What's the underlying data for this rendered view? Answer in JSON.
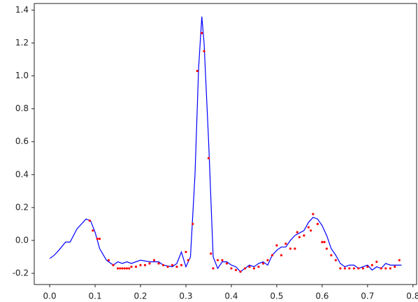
{
  "chart_data": {
    "type": "combo",
    "xlim": [
      -0.034,
      0.808
    ],
    "ylim": [
      -0.268,
      1.44
    ],
    "xticks": [
      {
        "value": 0,
        "label": "0.0"
      },
      0.1,
      0.2,
      0.3,
      0.4,
      0.5,
      0.6,
      0.7,
      0.8
    ],
    "yticks": [
      -0.2,
      {
        "value": 0,
        "label": "0.0"
      },
      0.2,
      0.4,
      0.6,
      0.8,
      {
        "value": 1,
        "label": "1.0"
      },
      1.2,
      1.4
    ],
    "grid": false,
    "series": [
      {
        "type": "line",
        "color": "#0000ff",
        "x": [
          0.0,
          0.01,
          0.02,
          0.035,
          0.045,
          0.06,
          0.08,
          0.09,
          0.1,
          0.11,
          0.125,
          0.14,
          0.15,
          0.16,
          0.17,
          0.18,
          0.2,
          0.22,
          0.24,
          0.25,
          0.27,
          0.28,
          0.29,
          0.3,
          0.31,
          0.32,
          0.328,
          0.335,
          0.34,
          0.35,
          0.36,
          0.37,
          0.38,
          0.39,
          0.4,
          0.41,
          0.42,
          0.43,
          0.44,
          0.45,
          0.46,
          0.47,
          0.48,
          0.49,
          0.5,
          0.51,
          0.52,
          0.53,
          0.54,
          0.56,
          0.57,
          0.58,
          0.59,
          0.6,
          0.61,
          0.62,
          0.63,
          0.64,
          0.65,
          0.66,
          0.67,
          0.68,
          0.69,
          0.7,
          0.71,
          0.72,
          0.73,
          0.74,
          0.75,
          0.76,
          0.775
        ],
        "values": [
          -0.11,
          -0.09,
          -0.06,
          -0.01,
          -0.01,
          0.07,
          0.13,
          0.12,
          0.05,
          -0.05,
          -0.12,
          -0.15,
          -0.13,
          -0.14,
          -0.13,
          -0.14,
          -0.12,
          -0.13,
          -0.13,
          -0.15,
          -0.16,
          -0.14,
          -0.07,
          -0.16,
          -0.1,
          0.4,
          1.05,
          1.36,
          1.2,
          0.6,
          -0.1,
          -0.17,
          -0.13,
          -0.13,
          -0.15,
          -0.16,
          -0.19,
          -0.17,
          -0.15,
          -0.16,
          -0.14,
          -0.13,
          -0.15,
          -0.09,
          -0.06,
          -0.04,
          -0.04,
          0.0,
          0.03,
          0.06,
          0.11,
          0.14,
          0.13,
          0.09,
          0.03,
          -0.05,
          -0.09,
          -0.14,
          -0.16,
          -0.15,
          -0.15,
          -0.17,
          -0.16,
          -0.15,
          -0.18,
          -0.16,
          -0.17,
          -0.14,
          -0.15,
          -0.15,
          -0.15
        ]
      },
      {
        "type": "scatter",
        "color": "#ff0000",
        "x": [
          0.088,
          0.095,
          0.105,
          0.11,
          0.13,
          0.14,
          0.15,
          0.155,
          0.16,
          0.165,
          0.17,
          0.175,
          0.18,
          0.19,
          0.2,
          0.21,
          0.22,
          0.23,
          0.24,
          0.25,
          0.26,
          0.27,
          0.28,
          0.29,
          0.3,
          0.305,
          0.315,
          0.325,
          0.335,
          0.34,
          0.35,
          0.355,
          0.36,
          0.37,
          0.38,
          0.39,
          0.4,
          0.41,
          0.42,
          0.43,
          0.44,
          0.45,
          0.46,
          0.47,
          0.48,
          0.49,
          0.5,
          0.51,
          0.52,
          0.53,
          0.54,
          0.545,
          0.55,
          0.56,
          0.57,
          0.575,
          0.58,
          0.59,
          0.6,
          0.605,
          0.61,
          0.62,
          0.63,
          0.64,
          0.65,
          0.66,
          0.67,
          0.68,
          0.69,
          0.7,
          0.71,
          0.72,
          0.73,
          0.74,
          0.75,
          0.76,
          0.77
        ],
        "values": [
          0.12,
          0.06,
          0.01,
          0.01,
          -0.12,
          -0.15,
          -0.17,
          -0.17,
          -0.17,
          -0.17,
          -0.17,
          -0.17,
          -0.16,
          -0.16,
          -0.15,
          -0.15,
          -0.14,
          -0.12,
          -0.14,
          -0.15,
          -0.16,
          -0.15,
          -0.16,
          -0.15,
          -0.07,
          -0.12,
          0.1,
          1.03,
          1.26,
          1.15,
          0.5,
          -0.08,
          -0.17,
          -0.12,
          -0.12,
          -0.14,
          -0.17,
          -0.18,
          -0.19,
          -0.17,
          -0.16,
          -0.17,
          -0.16,
          -0.14,
          -0.12,
          -0.09,
          -0.03,
          -0.09,
          -0.02,
          -0.05,
          -0.05,
          0.05,
          0.02,
          0.03,
          0.08,
          0.06,
          0.16,
          0.1,
          -0.01,
          -0.01,
          -0.05,
          -0.09,
          -0.12,
          -0.17,
          -0.17,
          -0.17,
          -0.17,
          -0.17,
          -0.17,
          -0.16,
          -0.15,
          -0.13,
          -0.17,
          -0.17,
          -0.17,
          -0.16,
          -0.12
        ]
      }
    ]
  }
}
